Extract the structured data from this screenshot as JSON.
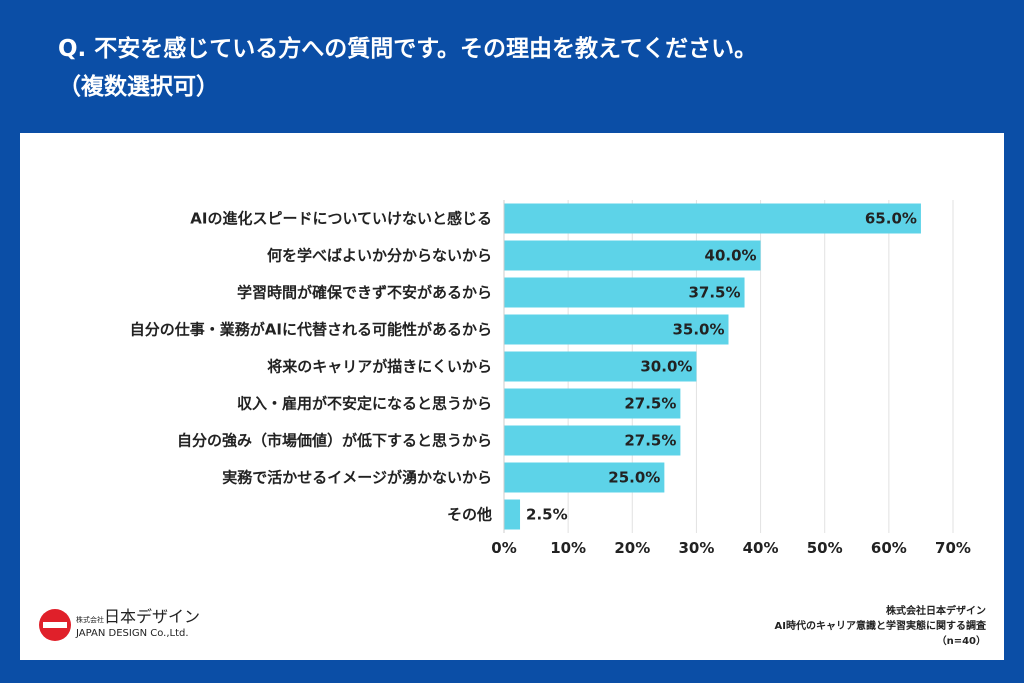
{
  "title": {
    "line1": "Q. 不安を感じている方への質問です。その理由を教えてください。",
    "line2": "（複数選択可）"
  },
  "chart_data": {
    "type": "bar",
    "orientation": "horizontal",
    "categories": [
      "AIの進化スピードについていけないと感じる",
      "何を学べばよいか分からないから",
      "学習時間が確保できず不安があるから",
      "自分の仕事・業務がAIに代替される可能性があるから",
      "将来のキャリアが描きにくいから",
      "収入・雇用が不安定になると思うから",
      "自分の強み（市場価値）が低下すると思うから",
      "実務で活かせるイメージが湧かないから",
      "その他"
    ],
    "values": [
      65.0,
      40.0,
      37.5,
      35.0,
      30.0,
      27.5,
      27.5,
      25.0,
      2.5
    ],
    "value_labels": [
      "65.0%",
      "40.0%",
      "37.5%",
      "35.0%",
      "30.0%",
      "27.5%",
      "27.5%",
      "25.0%",
      "2.5%"
    ],
    "xlim": [
      0,
      70
    ],
    "xticks": [
      "0%",
      "10%",
      "20%",
      "30%",
      "40%",
      "50%",
      "60%",
      "70%"
    ],
    "grid": true,
    "bar_color": "#5dd3e8"
  },
  "logo": {
    "small": "株式会社",
    "main": "日本デザイン",
    "sub": "JAPAN DESIGN Co.,Ltd."
  },
  "source": {
    "company": "株式会社日本デザイン",
    "survey": "AI時代のキャリア意識と学習実態に関する調査",
    "n": "（n=40）"
  },
  "colors": {
    "background": "#0b4ea6",
    "bar": "#5dd3e8",
    "logo_red": "#e0202a"
  }
}
